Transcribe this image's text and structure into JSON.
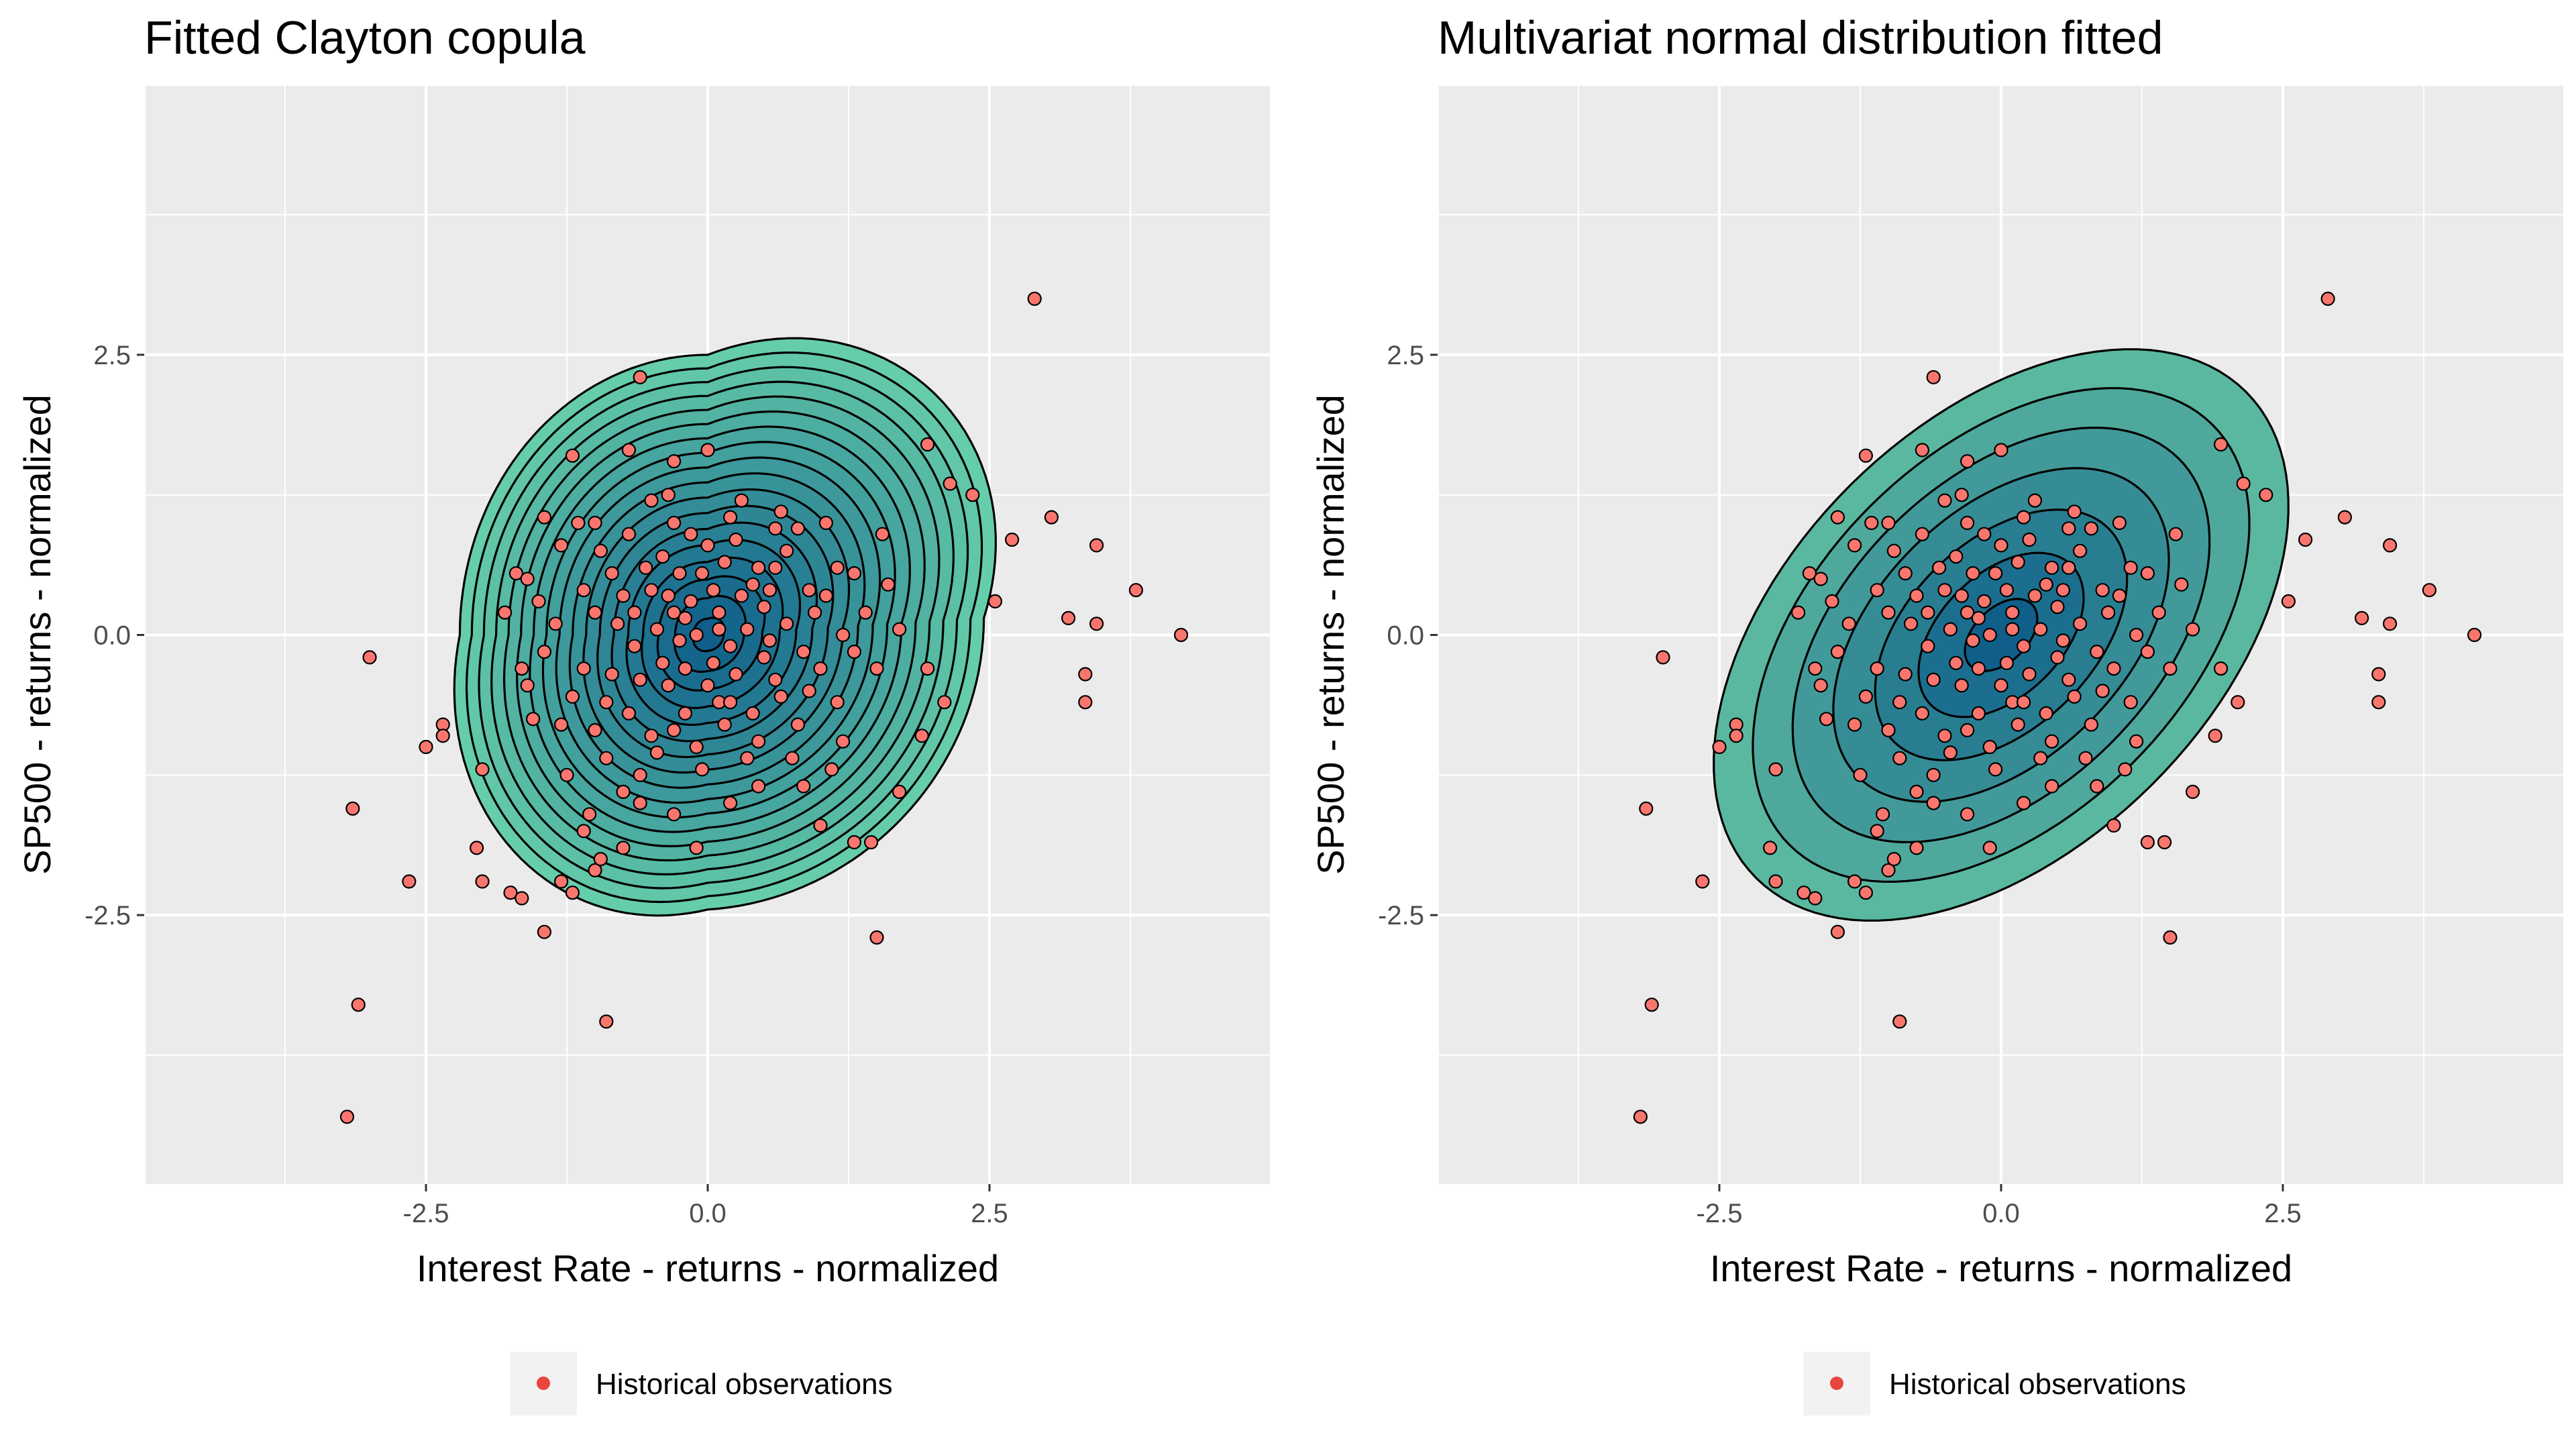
{
  "chart_data": [
    {
      "type": "scatter",
      "title": "Fitted Clayton copula",
      "xlabel": "Interest Rate - returns - normalized",
      "ylabel": "SP500 - returns - normalized",
      "xlim": [
        -5.0,
        5.0
      ],
      "ylim": [
        -4.9,
        4.9
      ],
      "x_ticks": [
        -2.5,
        0.0,
        2.5
      ],
      "y_ticks": [
        -2.5,
        0.0,
        2.5
      ],
      "x_tick_labels": [
        "-2.5",
        "0.0",
        "2.5"
      ],
      "y_tick_labels": [
        "-2.5",
        "0.0",
        "2.5"
      ],
      "grid": true,
      "legend": {
        "position": "bottom",
        "entries": [
          "Historical observations"
        ]
      },
      "density_overlay": {
        "kind": "clayton",
        "levels": 18,
        "colors": [
          "#66cdaa",
          "#0f5f8a"
        ]
      },
      "point_color": "#f8766d",
      "series": [
        {
          "name": "Historical observations",
          "points": "observations"
        }
      ]
    },
    {
      "type": "scatter",
      "title": "Multivariat normal distribution fitted",
      "xlabel": "Interest Rate - returns - normalized",
      "ylabel": "SP500 - returns - normalized",
      "xlim": [
        -5.0,
        5.0
      ],
      "ylim": [
        -4.9,
        4.9
      ],
      "x_ticks": [
        -2.5,
        0.0,
        2.5
      ],
      "y_ticks": [
        -2.5,
        0.0,
        2.5
      ],
      "x_tick_labels": [
        "-2.5",
        "0.0",
        "2.5"
      ],
      "y_tick_labels": [
        "-2.5",
        "0.0",
        "2.5"
      ],
      "grid": true,
      "legend": {
        "position": "bottom",
        "entries": [
          "Historical observations"
        ]
      },
      "density_overlay": {
        "kind": "gaussian",
        "rho": 0.45,
        "levels": 7,
        "colors": [
          "#5ab8a0",
          "#0f5f8a"
        ]
      },
      "point_color": "#f8766d",
      "series": [
        {
          "name": "Historical observations",
          "points": "observations"
        }
      ]
    }
  ],
  "observations": [
    [
      2.9,
      3.0
    ],
    [
      -0.6,
      2.3
    ],
    [
      1.95,
      1.7
    ],
    [
      -1.2,
      1.6
    ],
    [
      0.0,
      1.65
    ],
    [
      -0.7,
      1.65
    ],
    [
      -0.3,
      1.55
    ],
    [
      2.15,
      1.35
    ],
    [
      2.35,
      1.25
    ],
    [
      -0.35,
      1.25
    ],
    [
      3.05,
      1.05
    ],
    [
      -1.45,
      1.05
    ],
    [
      2.7,
      0.85
    ],
    [
      3.45,
      0.8
    ],
    [
      -1.7,
      0.55
    ],
    [
      3.8,
      0.4
    ],
    [
      2.55,
      0.3
    ],
    [
      3.2,
      0.15
    ],
    [
      3.45,
      0.1
    ],
    [
      4.2,
      0.0
    ],
    [
      -3.0,
      -0.2
    ],
    [
      3.35,
      -0.35
    ],
    [
      3.35,
      -0.6
    ],
    [
      2.1,
      -0.6
    ],
    [
      -2.35,
      -0.8
    ],
    [
      -2.35,
      -0.9
    ],
    [
      -2.5,
      -1.0
    ],
    [
      -2.0,
      -1.2
    ],
    [
      -3.15,
      -1.55
    ],
    [
      -2.05,
      -1.9
    ],
    [
      1.45,
      -1.85
    ],
    [
      -2.65,
      -2.2
    ],
    [
      -1.75,
      -2.3
    ],
    [
      -1.65,
      -2.35
    ],
    [
      -1.45,
      -2.65
    ],
    [
      1.5,
      -2.7
    ],
    [
      -3.1,
      -3.3
    ],
    [
      -0.9,
      -3.45
    ],
    [
      -3.2,
      -4.3
    ],
    [
      -2.0,
      -2.2
    ],
    [
      -1.3,
      -2.2
    ],
    [
      -1.2,
      -2.3
    ],
    [
      -1.0,
      -2.1
    ],
    [
      -0.95,
      -2.0
    ],
    [
      -0.75,
      -1.9
    ],
    [
      -0.1,
      -1.9
    ],
    [
      1.3,
      -1.85
    ],
    [
      1.0,
      -1.7
    ],
    [
      -1.05,
      -1.6
    ],
    [
      -0.3,
      -1.6
    ],
    [
      0.2,
      -1.5
    ],
    [
      -0.6,
      -1.5
    ],
    [
      1.7,
      -1.4
    ],
    [
      1.9,
      -0.9
    ],
    [
      1.95,
      -0.3
    ],
    [
      -1.6,
      -0.45
    ],
    [
      -1.8,
      0.2
    ],
    [
      -1.6,
      0.5
    ],
    [
      -1.3,
      0.8
    ],
    [
      -1.0,
      1.0
    ],
    [
      1.55,
      0.9
    ],
    [
      1.3,
      0.55
    ],
    [
      1.15,
      0.6
    ],
    [
      1.6,
      0.45
    ],
    [
      1.2,
      0.0
    ],
    [
      1.0,
      -0.3
    ],
    [
      1.4,
      0.2
    ],
    [
      1.05,
      1.0
    ],
    [
      0.8,
      0.95
    ],
    [
      -0.5,
      0.4
    ],
    [
      -0.3,
      0.2
    ],
    [
      -0.1,
      0.0
    ],
    [
      0.1,
      0.2
    ],
    [
      0.2,
      -0.1
    ],
    [
      0.3,
      0.35
    ],
    [
      0.45,
      0.6
    ],
    [
      -0.2,
      -0.3
    ],
    [
      -0.6,
      -0.4
    ],
    [
      -0.4,
      0.7
    ],
    [
      0.0,
      0.8
    ],
    [
      0.5,
      -0.2
    ],
    [
      0.7,
      0.1
    ],
    [
      0.9,
      0.4
    ],
    [
      -0.8,
      0.1
    ],
    [
      -0.9,
      -0.6
    ],
    [
      -0.5,
      -0.9
    ],
    [
      -0.2,
      -0.7
    ],
    [
      0.1,
      -0.6
    ],
    [
      0.4,
      -0.7
    ],
    [
      0.6,
      -0.4
    ],
    [
      0.8,
      -0.8
    ],
    [
      -1.1,
      -0.3
    ],
    [
      -1.3,
      -0.8
    ],
    [
      -1.1,
      0.4
    ],
    [
      -0.7,
      0.9
    ],
    [
      -0.3,
      1.0
    ],
    [
      0.2,
      1.05
    ],
    [
      0.6,
      0.95
    ],
    [
      0.35,
      -1.1
    ],
    [
      -0.05,
      -1.2
    ],
    [
      -0.6,
      -1.25
    ],
    [
      -0.9,
      -1.1
    ],
    [
      -1.25,
      -1.25
    ],
    [
      -0.05,
      0.55
    ],
    [
      0.15,
      0.65
    ],
    [
      -0.65,
      -0.1
    ],
    [
      -0.45,
      0.05
    ],
    [
      0.5,
      0.25
    ],
    [
      0.25,
      -0.35
    ],
    [
      -0.25,
      -0.05
    ],
    [
      0.05,
      -0.25
    ],
    [
      0.65,
      -0.55
    ],
    [
      -0.85,
      0.55
    ],
    [
      -0.15,
      0.3
    ],
    [
      0.35,
      0.05
    ],
    [
      0.6,
      0.6
    ],
    [
      -1.45,
      -0.15
    ],
    [
      -0.75,
      0.35
    ],
    [
      0.85,
      -0.15
    ],
    [
      0.95,
      0.2
    ],
    [
      -0.35,
      -0.45
    ],
    [
      -0.55,
      0.6
    ],
    [
      0.45,
      -0.95
    ],
    [
      -1.0,
      -0.85
    ],
    [
      1.15,
      -0.6
    ],
    [
      -1.5,
      0.3
    ],
    [
      0.7,
      0.75
    ],
    [
      -0.15,
      0.9
    ],
    [
      -0.95,
      0.75
    ],
    [
      0.05,
      0.4
    ],
    [
      -0.4,
      -0.25
    ],
    [
      0.25,
      0.85
    ],
    [
      1.3,
      -0.15
    ],
    [
      -1.2,
      -0.55
    ],
    [
      0.55,
      -0.05
    ],
    [
      -0.7,
      -0.7
    ],
    [
      -0.25,
      0.55
    ],
    [
      0.15,
      -0.8
    ],
    [
      1.05,
      0.35
    ],
    [
      -1.55,
      -0.75
    ],
    [
      -0.5,
      1.2
    ],
    [
      0.3,
      1.2
    ],
    [
      0.9,
      -0.5
    ],
    [
      -0.85,
      -0.35
    ],
    [
      0.0,
      -0.45
    ],
    [
      -0.35,
      0.35
    ],
    [
      0.4,
      0.45
    ],
    [
      -1.35,
      0.1
    ],
    [
      1.5,
      -0.3
    ],
    [
      -0.1,
      -1.0
    ],
    [
      0.75,
      -1.1
    ],
    [
      -0.45,
      -1.05
    ],
    [
      0.1,
      0.05
    ],
    [
      -0.2,
      0.15
    ],
    [
      0.55,
      0.4
    ],
    [
      -0.65,
      0.2
    ],
    [
      0.2,
      -0.6
    ],
    [
      -1.0,
      0.2
    ],
    [
      1.2,
      -0.95
    ],
    [
      -0.3,
      -0.85
    ],
    [
      0.65,
      1.1
    ],
    [
      -1.15,
      1.0
    ],
    [
      0.85,
      -1.35
    ],
    [
      -0.75,
      -1.4
    ],
    [
      -1.1,
      -1.75
    ],
    [
      0.45,
      -1.35
    ],
    [
      1.1,
      -1.2
    ],
    [
      -1.65,
      -0.3
    ],
    [
      1.7,
      0.05
    ]
  ]
}
